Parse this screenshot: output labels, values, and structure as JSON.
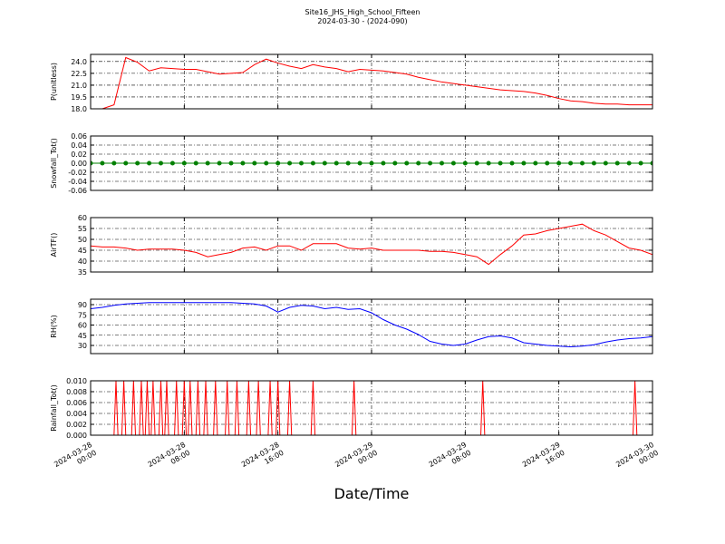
{
  "chart_data": [
    {
      "type": "line",
      "title": "Site16_JHS_High_School_Fifteen",
      "subtitle": "2024-03-30 - (2024-090)",
      "ylabel": "P(unitless)",
      "color": "#ff0000",
      "x": [
        "2024-03-28 00:00",
        "2024-03-28 01:00",
        "2024-03-28 02:00",
        "2024-03-28 03:00",
        "2024-03-28 04:00",
        "2024-03-28 05:00",
        "2024-03-28 06:00",
        "2024-03-28 07:00",
        "2024-03-28 08:00",
        "2024-03-28 09:00",
        "2024-03-28 10:00",
        "2024-03-28 11:00",
        "2024-03-28 12:00",
        "2024-03-28 13:00",
        "2024-03-28 14:00",
        "2024-03-28 15:00",
        "2024-03-28 16:00",
        "2024-03-28 17:00",
        "2024-03-28 18:00",
        "2024-03-28 19:00",
        "2024-03-28 20:00",
        "2024-03-28 21:00",
        "2024-03-28 22:00",
        "2024-03-28 23:00",
        "2024-03-29 00:00",
        "2024-03-29 01:00",
        "2024-03-29 02:00",
        "2024-03-29 03:00",
        "2024-03-29 04:00",
        "2024-03-29 05:00",
        "2024-03-29 06:00",
        "2024-03-29 07:00",
        "2024-03-29 08:00",
        "2024-03-29 09:00",
        "2024-03-29 10:00",
        "2024-03-29 11:00",
        "2024-03-29 12:00",
        "2024-03-29 13:00",
        "2024-03-29 14:00",
        "2024-03-29 15:00",
        "2024-03-29 16:00",
        "2024-03-29 17:00",
        "2024-03-29 18:00",
        "2024-03-29 19:00",
        "2024-03-29 20:00",
        "2024-03-29 21:00",
        "2024-03-29 22:00",
        "2024-03-29 23:00",
        "2024-03-30 00:00"
      ],
      "values": [
        18.0,
        18.0,
        18.5,
        24.5,
        23.9,
        22.8,
        23.2,
        23.1,
        23.0,
        23.0,
        22.7,
        22.4,
        22.5,
        22.6,
        23.6,
        24.3,
        23.8,
        23.4,
        23.1,
        23.6,
        23.3,
        23.1,
        22.7,
        23.0,
        22.9,
        22.8,
        22.6,
        22.4,
        22.0,
        21.7,
        21.4,
        21.2,
        21.0,
        20.8,
        20.6,
        20.4,
        20.3,
        20.2,
        20.0,
        19.7,
        19.3,
        19.0,
        18.9,
        18.7,
        18.6,
        18.6,
        18.5,
        18.5,
        18.5
      ],
      "ylim": [
        18,
        24.9
      ],
      "yticks": [
        {
          "value": 18,
          "label": "18.0"
        },
        19.5,
        {
          "value": 21,
          "label": "21.0"
        },
        22.5,
        {
          "value": 24,
          "label": "24.0"
        }
      ],
      "xlim": [
        "2024-03-28 00:00",
        "2024-03-30 00:00"
      ],
      "xticks": [
        "2024-03-28 00:00",
        "2024-03-28 08:00",
        "2024-03-28 16:00",
        "2024-03-29 00:00",
        "2024-03-29 08:00",
        "2024-03-29 16:00",
        "2024-03-30 00:00"
      ],
      "grid": true
    },
    {
      "type": "line",
      "ylabel": "Snowfall_Tot()",
      "color": "#008000",
      "marker": true,
      "x": [
        "2024-03-28 00:00",
        "2024-03-28 01:00",
        "2024-03-28 02:00",
        "2024-03-28 03:00",
        "2024-03-28 04:00",
        "2024-03-28 05:00",
        "2024-03-28 06:00",
        "2024-03-28 07:00",
        "2024-03-28 08:00",
        "2024-03-28 09:00",
        "2024-03-28 10:00",
        "2024-03-28 11:00",
        "2024-03-28 12:00",
        "2024-03-28 13:00",
        "2024-03-28 14:00",
        "2024-03-28 15:00",
        "2024-03-28 16:00",
        "2024-03-28 17:00",
        "2024-03-28 18:00",
        "2024-03-28 19:00",
        "2024-03-28 20:00",
        "2024-03-28 21:00",
        "2024-03-28 22:00",
        "2024-03-28 23:00",
        "2024-03-29 00:00",
        "2024-03-29 01:00",
        "2024-03-29 02:00",
        "2024-03-29 03:00",
        "2024-03-29 04:00",
        "2024-03-29 05:00",
        "2024-03-29 06:00",
        "2024-03-29 07:00",
        "2024-03-29 08:00",
        "2024-03-29 09:00",
        "2024-03-29 10:00",
        "2024-03-29 11:00",
        "2024-03-29 12:00",
        "2024-03-29 13:00",
        "2024-03-29 14:00",
        "2024-03-29 15:00",
        "2024-03-29 16:00",
        "2024-03-29 17:00",
        "2024-03-29 18:00",
        "2024-03-29 19:00",
        "2024-03-29 20:00",
        "2024-03-29 21:00",
        "2024-03-29 22:00",
        "2024-03-29 23:00",
        "2024-03-30 00:00"
      ],
      "values": [
        0,
        0,
        0,
        0,
        0,
        0,
        0,
        0,
        0,
        0,
        0,
        0,
        0,
        0,
        0,
        0,
        0,
        0,
        0,
        0,
        0,
        0,
        0,
        0,
        0,
        0,
        0,
        0,
        0,
        0,
        0,
        0,
        0,
        0,
        0,
        0,
        0,
        0,
        0,
        0,
        0,
        0,
        0,
        0,
        0,
        0,
        0,
        0,
        0
      ],
      "ylim": [
        -0.06,
        0.06
      ],
      "yticks": [
        -0.06,
        -0.04,
        -0.02,
        {
          "value": 0,
          "label": "0.00"
        },
        0.02,
        0.04,
        0.06
      ],
      "xlim": [
        "2024-03-28 00:00",
        "2024-03-30 00:00"
      ],
      "xticks": [
        "2024-03-28 00:00",
        "2024-03-28 08:00",
        "2024-03-28 16:00",
        "2024-03-29 00:00",
        "2024-03-29 08:00",
        "2024-03-29 16:00",
        "2024-03-30 00:00"
      ],
      "grid": true
    },
    {
      "type": "line",
      "ylabel": "AirTF()",
      "color": "#ff0000",
      "x": [
        "2024-03-28 00:00",
        "2024-03-28 01:00",
        "2024-03-28 02:00",
        "2024-03-28 03:00",
        "2024-03-28 04:00",
        "2024-03-28 05:00",
        "2024-03-28 06:00",
        "2024-03-28 07:00",
        "2024-03-28 08:00",
        "2024-03-28 09:00",
        "2024-03-28 10:00",
        "2024-03-28 11:00",
        "2024-03-28 12:00",
        "2024-03-28 13:00",
        "2024-03-28 14:00",
        "2024-03-28 15:00",
        "2024-03-28 16:00",
        "2024-03-28 17:00",
        "2024-03-28 18:00",
        "2024-03-28 19:00",
        "2024-03-28 20:00",
        "2024-03-28 21:00",
        "2024-03-28 22:00",
        "2024-03-28 23:00",
        "2024-03-29 00:00",
        "2024-03-29 01:00",
        "2024-03-29 02:00",
        "2024-03-29 03:00",
        "2024-03-29 04:00",
        "2024-03-29 05:00",
        "2024-03-29 06:00",
        "2024-03-29 07:00",
        "2024-03-29 08:00",
        "2024-03-29 09:00",
        "2024-03-29 10:00",
        "2024-03-29 11:00",
        "2024-03-29 12:00",
        "2024-03-29 13:00",
        "2024-03-29 14:00",
        "2024-03-29 15:00",
        "2024-03-29 16:00",
        "2024-03-29 17:00",
        "2024-03-29 18:00",
        "2024-03-29 19:00",
        "2024-03-29 20:00",
        "2024-03-29 21:00",
        "2024-03-29 22:00",
        "2024-03-29 23:00",
        "2024-03-30 00:00"
      ],
      "values": [
        47,
        46.5,
        46.5,
        46,
        45,
        45.5,
        45.5,
        45.5,
        45,
        44,
        42,
        43,
        44,
        46,
        46.5,
        45,
        47,
        47,
        45,
        48,
        48,
        48,
        46,
        45.5,
        46,
        45,
        45,
        45,
        45,
        44.5,
        44.5,
        44,
        43,
        42,
        38.5,
        43,
        47,
        52,
        52.5,
        54,
        55,
        56,
        57,
        54,
        52,
        49,
        46,
        45,
        43
      ],
      "ylim": [
        35,
        60
      ],
      "yticks": [
        35,
        40,
        45,
        50,
        55,
        60
      ],
      "xlim": [
        "2024-03-28 00:00",
        "2024-03-30 00:00"
      ],
      "xticks": [
        "2024-03-28 00:00",
        "2024-03-28 08:00",
        "2024-03-28 16:00",
        "2024-03-29 00:00",
        "2024-03-29 08:00",
        "2024-03-29 16:00",
        "2024-03-30 00:00"
      ],
      "grid": true
    },
    {
      "type": "line",
      "ylabel": "RH(%)",
      "color": "#0000ff",
      "x": [
        "2024-03-28 00:00",
        "2024-03-28 01:00",
        "2024-03-28 02:00",
        "2024-03-28 03:00",
        "2024-03-28 04:00",
        "2024-03-28 05:00",
        "2024-03-28 06:00",
        "2024-03-28 07:00",
        "2024-03-28 08:00",
        "2024-03-28 09:00",
        "2024-03-28 10:00",
        "2024-03-28 11:00",
        "2024-03-28 12:00",
        "2024-03-28 13:00",
        "2024-03-28 14:00",
        "2024-03-28 15:00",
        "2024-03-28 16:00",
        "2024-03-28 17:00",
        "2024-03-28 18:00",
        "2024-03-28 19:00",
        "2024-03-28 20:00",
        "2024-03-28 21:00",
        "2024-03-28 22:00",
        "2024-03-28 23:00",
        "2024-03-29 00:00",
        "2024-03-29 01:00",
        "2024-03-29 02:00",
        "2024-03-29 03:00",
        "2024-03-29 04:00",
        "2024-03-29 05:00",
        "2024-03-29 06:00",
        "2024-03-29 07:00",
        "2024-03-29 08:00",
        "2024-03-29 09:00",
        "2024-03-29 10:00",
        "2024-03-29 11:00",
        "2024-03-29 12:00",
        "2024-03-29 13:00",
        "2024-03-29 14:00",
        "2024-03-29 15:00",
        "2024-03-29 16:00",
        "2024-03-29 17:00",
        "2024-03-29 18:00",
        "2024-03-29 19:00",
        "2024-03-29 20:00",
        "2024-03-29 21:00",
        "2024-03-29 22:00",
        "2024-03-29 23:00",
        "2024-03-30 00:00"
      ],
      "values": [
        84,
        86,
        89,
        91,
        92,
        93,
        93,
        93,
        93,
        93,
        93,
        93,
        93,
        92,
        91,
        88,
        79,
        86,
        89,
        88,
        84,
        86,
        83,
        84,
        78,
        68,
        60,
        54,
        46,
        36,
        32,
        30,
        32,
        38,
        43,
        44,
        41,
        34,
        32,
        30,
        29,
        28,
        29,
        31,
        35,
        38,
        40,
        41,
        43
      ],
      "ylim": [
        18,
        98
      ],
      "yticks": [
        30,
        45,
        60,
        75,
        90
      ],
      "xlim": [
        "2024-03-28 00:00",
        "2024-03-30 00:00"
      ],
      "xticks": [
        "2024-03-28 00:00",
        "2024-03-28 08:00",
        "2024-03-28 16:00",
        "2024-03-29 00:00",
        "2024-03-29 08:00",
        "2024-03-29 16:00",
        "2024-03-30 00:00"
      ],
      "grid": true
    },
    {
      "type": "line",
      "ylabel": "Rainfall_Tot()",
      "xlabel": "Date/Time",
      "color": "#ff0000",
      "x": [
        "2024-03-28 00:00",
        "2024-03-28 02:00",
        "2024-03-28 02:10",
        "2024-03-28 02:20",
        "2024-03-28 02:40",
        "2024-03-28 02:50",
        "2024-03-28 03:00",
        "2024-03-28 03:30",
        "2024-03-28 03:40",
        "2024-03-28 03:50",
        "2024-03-28 04:10",
        "2024-03-28 04:20",
        "2024-03-28 04:30",
        "2024-03-28 04:40",
        "2024-03-28 04:50",
        "2024-03-28 05:00",
        "2024-03-28 05:10",
        "2024-03-28 05:20",
        "2024-03-28 05:30",
        "2024-03-28 05:50",
        "2024-03-28 06:00",
        "2024-03-28 06:10",
        "2024-03-28 06:20",
        "2024-03-28 06:30",
        "2024-03-28 06:40",
        "2024-03-28 07:10",
        "2024-03-28 07:20",
        "2024-03-28 07:30",
        "2024-03-28 07:50",
        "2024-03-28 08:00",
        "2024-03-28 08:10",
        "2024-03-28 08:20",
        "2024-03-28 08:30",
        "2024-03-28 08:40",
        "2024-03-28 09:00",
        "2024-03-28 09:10",
        "2024-03-28 09:20",
        "2024-03-28 09:40",
        "2024-03-28 09:50",
        "2024-03-28 10:00",
        "2024-03-28 10:30",
        "2024-03-28 10:40",
        "2024-03-28 10:50",
        "2024-03-28 11:30",
        "2024-03-28 11:40",
        "2024-03-28 11:50",
        "2024-03-28 12:20",
        "2024-03-28 12:30",
        "2024-03-28 12:40",
        "2024-03-28 13:20",
        "2024-03-28 13:30",
        "2024-03-28 13:40",
        "2024-03-28 14:10",
        "2024-03-28 14:20",
        "2024-03-28 14:30",
        "2024-03-28 15:10",
        "2024-03-28 15:20",
        "2024-03-28 15:30",
        "2024-03-28 15:50",
        "2024-03-28 16:00",
        "2024-03-28 16:10",
        "2024-03-28 16:50",
        "2024-03-28 17:00",
        "2024-03-28 17:10",
        "2024-03-28 18:50",
        "2024-03-28 19:00",
        "2024-03-28 19:10",
        "2024-03-28 22:20",
        "2024-03-28 22:30",
        "2024-03-28 22:40",
        "2024-03-29 09:20",
        "2024-03-29 09:30",
        "2024-03-29 09:40",
        "2024-03-29 22:20",
        "2024-03-29 22:30",
        "2024-03-29 22:40",
        "2024-03-30 00:00"
      ],
      "values": [
        0,
        0,
        0.01,
        0,
        0,
        0.01,
        0,
        0,
        0.01,
        0,
        0,
        0.01,
        0,
        0,
        0.01,
        0,
        0,
        0.01,
        0,
        0,
        0.01,
        0,
        0,
        0.01,
        0,
        0,
        0.01,
        0,
        0,
        0.01,
        0,
        0,
        0.01,
        0,
        0,
        0.01,
        0,
        0,
        0.01,
        0,
        0,
        0.01,
        0,
        0,
        0.01,
        0,
        0,
        0.01,
        0,
        0,
        0.01,
        0,
        0,
        0.01,
        0,
        0,
        0.01,
        0,
        0,
        0.01,
        0,
        0,
        0.01,
        0,
        0,
        0.01,
        0,
        0,
        0.01,
        0,
        0,
        0.01,
        0,
        0,
        0.01,
        0,
        0
      ],
      "ylim": [
        0,
        0.01
      ],
      "yticks": [
        {
          "value": 0,
          "label": "0.000"
        },
        0.002,
        0.004,
        0.006,
        0.008,
        {
          "value": 0.01,
          "label": "0.010"
        }
      ],
      "xlim": [
        "2024-03-28 00:00",
        "2024-03-30 00:00"
      ],
      "xticks": [
        "2024-03-28 00:00",
        "2024-03-28 08:00",
        "2024-03-28 16:00",
        "2024-03-29 00:00",
        "2024-03-29 08:00",
        "2024-03-29 16:00",
        "2024-03-30 00:00"
      ],
      "grid": true
    }
  ]
}
